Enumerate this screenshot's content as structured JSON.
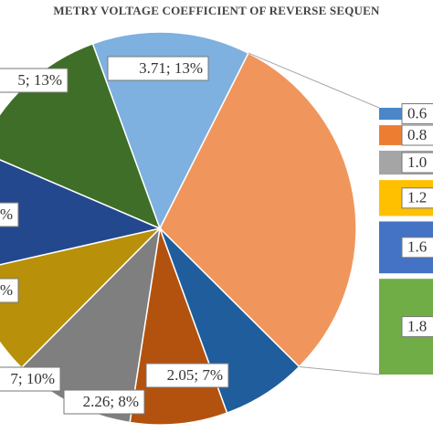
{
  "chart_data": {
    "type": "pie",
    "title": "METRY VOLTAGE  COEFFICIENT OF REVERSE SEQUEN",
    "values": [
      13,
      30,
      7,
      8,
      10,
      9,
      10,
      13
    ],
    "value_labels": [
      "3.71; 13%",
      null,
      "2.05; 7%",
      "2.26; 8%",
      "7; 10%",
      "%",
      "%",
      "5; 13%"
    ],
    "colors": [
      "#7eb0e0",
      "#f0965c",
      "#1f5d9c",
      "#b3520f",
      "#7f7f7f",
      "#b8900a",
      "#24488e",
      "#3e6e27"
    ],
    "bar_segments": {
      "values": [
        1.5,
        2.5,
        3,
        4.5,
        6.5,
        12
      ],
      "value_labels": [
        "0.6",
        "0.8",
        "1.0",
        "1.2",
        "1.6",
        "1.8"
      ],
      "colors": [
        "#4a86c8",
        "#ec7d31",
        "#a5a5a5",
        "#ffc000",
        "#4472c4",
        "#70ad47"
      ]
    }
  }
}
